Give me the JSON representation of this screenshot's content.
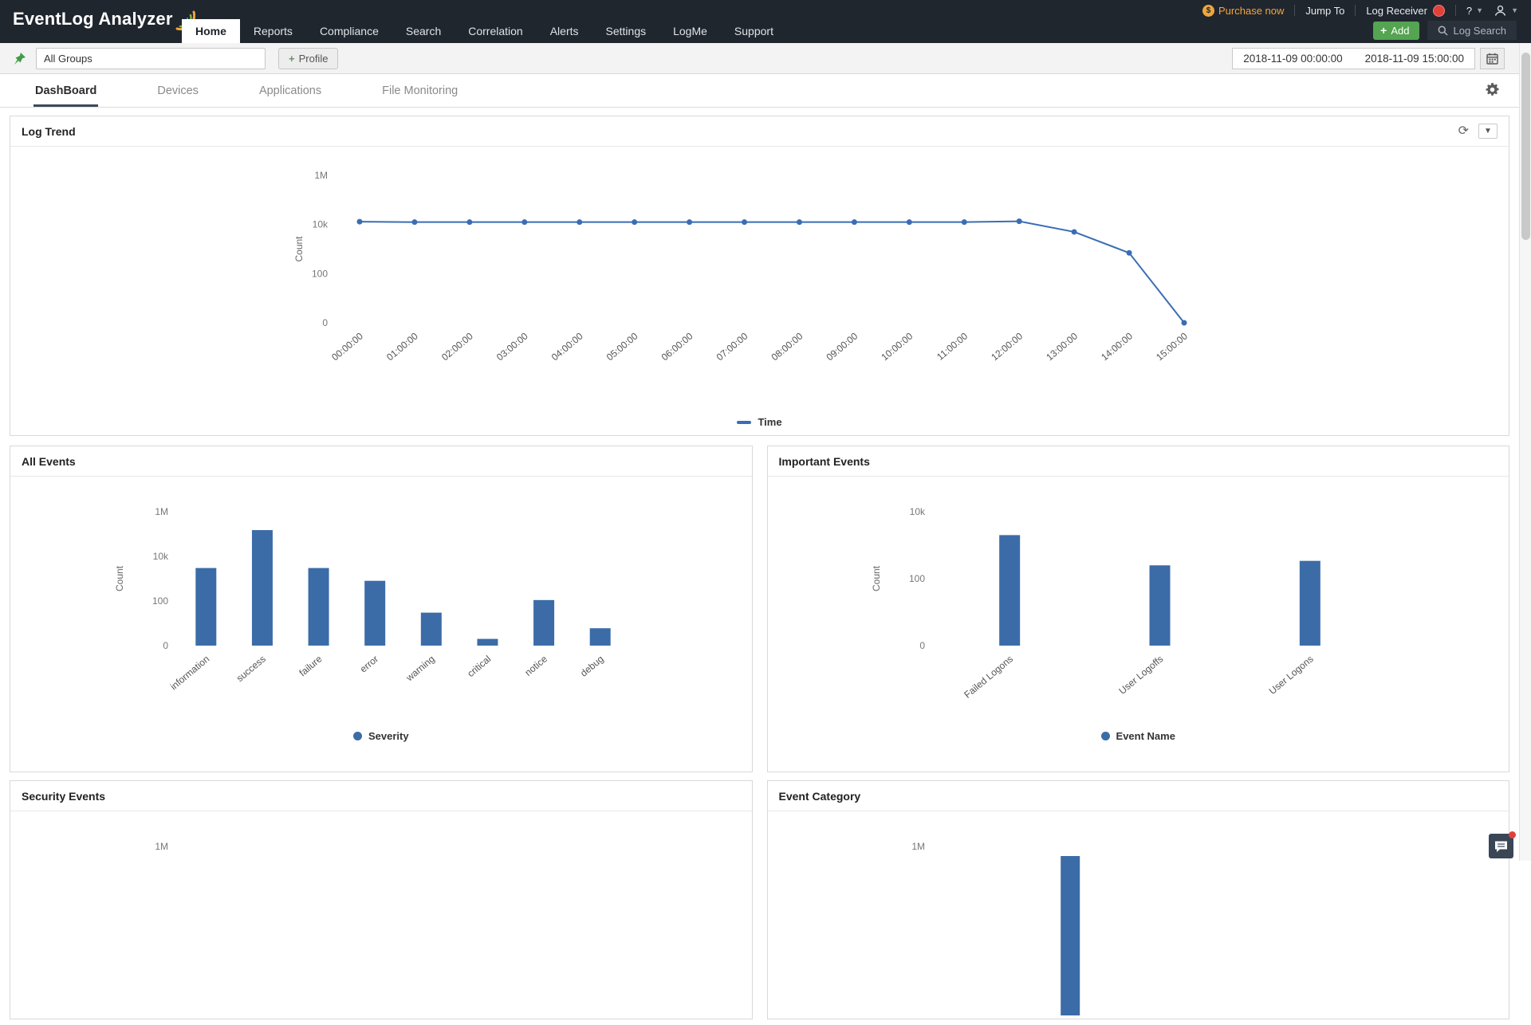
{
  "colors": {
    "header_bg": "#20262e",
    "chart_blue": "#3a6db5",
    "bar_blue": "#3c6ca8",
    "accent_green": "#54a452",
    "badge_red": "#e2403a",
    "purchase_orange": "#f0a63c"
  },
  "header": {
    "logo_text": "EventLog Analyzer",
    "purchase_label": "Purchase now",
    "jump_to_label": "Jump To",
    "log_receiver_label": "Log Receiver",
    "help_label": "?",
    "nav_items": [
      "Home",
      "Reports",
      "Compliance",
      "Search",
      "Correlation",
      "Alerts",
      "Settings",
      "LogMe",
      "Support"
    ],
    "active_nav": "Home",
    "add_button_label": "Add",
    "log_search_label": "Log Search"
  },
  "toolbar": {
    "group_selector_value": "All Groups",
    "profile_button_label": "Profile",
    "date_from": "2018-11-09 00:00:00",
    "date_to": "2018-11-09 15:00:00"
  },
  "tabs": {
    "items": [
      "DashBoard",
      "Devices",
      "Applications",
      "File Monitoring"
    ],
    "active": "DashBoard"
  },
  "chart_data": [
    {
      "id": "log_trend",
      "type": "line",
      "title": "Log Trend",
      "x": [
        "00:00:00",
        "01:00:00",
        "02:00:00",
        "03:00:00",
        "04:00:00",
        "05:00:00",
        "06:00:00",
        "07:00:00",
        "08:00:00",
        "09:00:00",
        "10:00:00",
        "11:00:00",
        "12:00:00",
        "13:00:00",
        "14:00:00",
        "15:00:00"
      ],
      "values": [
        13000,
        12500,
        12500,
        12500,
        12500,
        12500,
        12500,
        12500,
        12500,
        12500,
        12500,
        12500,
        13500,
        5000,
        700,
        0
      ],
      "ylabel": "Count",
      "yticks": [
        0,
        100,
        10000,
        1000000
      ],
      "ytick_labels": [
        "0",
        "100",
        "10k",
        "1M"
      ],
      "scale": "log",
      "grid": false,
      "legend": "Time",
      "legend_position": "bottom",
      "color": "#3a6db5"
    },
    {
      "id": "all_events",
      "type": "bar",
      "title": "All Events",
      "categories": [
        "information",
        "success",
        "failure",
        "error",
        "warning",
        "critical",
        "notice",
        "debug"
      ],
      "values": [
        3000,
        150000,
        3000,
        800,
        30,
        2,
        110,
        6
      ],
      "ylabel": "Count",
      "yticks": [
        0,
        100,
        10000,
        1000000
      ],
      "ytick_labels": [
        "0",
        "100",
        "10k",
        "1M"
      ],
      "scale": "log",
      "grid": false,
      "legend": "Severity",
      "legend_position": "bottom",
      "color": "#3c6ca8"
    },
    {
      "id": "important_events",
      "type": "bar",
      "title": "Important Events",
      "categories": [
        "Failed Logons",
        "User Logoffs",
        "User Logons"
      ],
      "values": [
        2000,
        250,
        340
      ],
      "ylabel": "Count",
      "yticks": [
        0,
        100,
        10000
      ],
      "ytick_labels": [
        "0",
        "100",
        "10k"
      ],
      "scale": "log",
      "grid": false,
      "legend": "Event Name",
      "legend_position": "bottom",
      "color": "#3c6ca8"
    },
    {
      "id": "security_events",
      "type": "bar",
      "title": "Security Events",
      "partial": true,
      "visible_tick": "1M",
      "color": "#3c6ca8"
    },
    {
      "id": "event_category",
      "type": "bar",
      "title": "Event Category",
      "partial": true,
      "visible_tick": "1M",
      "stub_bar_x_fraction": 0.28,
      "color": "#3c6ca8"
    }
  ]
}
